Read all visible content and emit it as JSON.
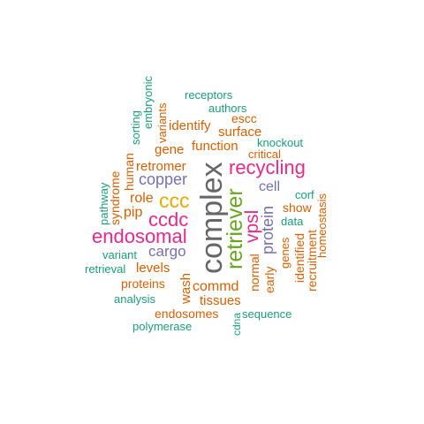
{
  "colors": {
    "teal": "#1b9e77",
    "orange": "#d95f02",
    "purple": "#7570b3",
    "magenta": "#e7298a",
    "green": "#66a61e",
    "gold": "#e6ab02",
    "gray": "#666666"
  },
  "words": [
    {
      "text": "complex",
      "color": "gray",
      "vertical": true
    },
    {
      "text": "retriever",
      "color": "green",
      "vertical": true
    },
    {
      "text": "recycling",
      "color": "magenta",
      "vertical": false
    },
    {
      "text": "endosomal",
      "color": "magenta",
      "vertical": false
    },
    {
      "text": "ccdc",
      "color": "magenta",
      "vertical": false
    },
    {
      "text": "ccc",
      "color": "gold",
      "vertical": false
    },
    {
      "text": "vpsl",
      "color": "magenta",
      "vertical": true
    },
    {
      "text": "protein",
      "color": "purple",
      "vertical": true
    },
    {
      "text": "copper",
      "color": "purple",
      "vertical": false
    },
    {
      "text": "cargo",
      "color": "purple",
      "vertical": false
    },
    {
      "text": "cell",
      "color": "purple",
      "vertical": false
    },
    {
      "text": "retromer",
      "color": "orange",
      "vertical": false
    },
    {
      "text": "function",
      "color": "orange",
      "vertical": false
    },
    {
      "text": "surface",
      "color": "orange",
      "vertical": false
    },
    {
      "text": "gene",
      "color": "orange",
      "vertical": false
    },
    {
      "text": "identify",
      "color": "orange",
      "vertical": false
    },
    {
      "text": "escc",
      "color": "orange",
      "vertical": false
    },
    {
      "text": "critical",
      "color": "orange",
      "vertical": false
    },
    {
      "text": "role",
      "color": "orange",
      "vertical": false
    },
    {
      "text": "pip",
      "color": "orange",
      "vertical": false
    },
    {
      "text": "levels",
      "color": "orange",
      "vertical": false
    },
    {
      "text": "proteins",
      "color": "orange",
      "vertical": false
    },
    {
      "text": "commd",
      "color": "orange",
      "vertical": false
    },
    {
      "text": "wash",
      "color": "orange",
      "vertical": true
    },
    {
      "text": "tissues",
      "color": "orange",
      "vertical": false
    },
    {
      "text": "endosomes",
      "color": "orange",
      "vertical": false
    },
    {
      "text": "show",
      "color": "orange",
      "vertical": false
    },
    {
      "text": "human",
      "color": "orange",
      "vertical": true
    },
    {
      "text": "syndrome",
      "color": "orange",
      "vertical": true
    },
    {
      "text": "variants",
      "color": "orange",
      "vertical": true
    },
    {
      "text": "normal",
      "color": "orange",
      "vertical": true
    },
    {
      "text": "early",
      "color": "orange",
      "vertical": true
    },
    {
      "text": "genes",
      "color": "orange",
      "vertical": true
    },
    {
      "text": "identified",
      "color": "orange",
      "vertical": true
    },
    {
      "text": "recruitment",
      "color": "orange",
      "vertical": true
    },
    {
      "text": "homeostasis",
      "color": "orange",
      "vertical": true
    },
    {
      "text": "receptors",
      "color": "teal",
      "vertical": false
    },
    {
      "text": "authors",
      "color": "teal",
      "vertical": false
    },
    {
      "text": "knockout",
      "color": "teal",
      "vertical": false
    },
    {
      "text": "corf",
      "color": "teal",
      "vertical": false
    },
    {
      "text": "data",
      "color": "teal",
      "vertical": false
    },
    {
      "text": "variant",
      "color": "teal",
      "vertical": false
    },
    {
      "text": "retrieval",
      "color": "teal",
      "vertical": false
    },
    {
      "text": "analysis",
      "color": "teal",
      "vertical": false
    },
    {
      "text": "polymerase",
      "color": "teal",
      "vertical": false
    },
    {
      "text": "sequence",
      "color": "teal",
      "vertical": false
    },
    {
      "text": "cdna",
      "color": "teal",
      "vertical": true
    },
    {
      "text": "pathway",
      "color": "teal",
      "vertical": true
    },
    {
      "text": "sorting",
      "color": "teal",
      "vertical": true
    },
    {
      "text": "embryonic",
      "color": "teal",
      "vertical": true
    }
  ]
}
